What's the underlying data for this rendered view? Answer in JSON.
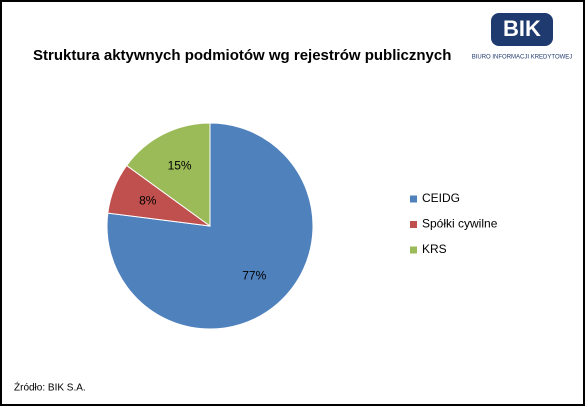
{
  "chart_data": {
    "type": "pie",
    "title": "Struktura aktywnych podmiotów wg rejestrów publicznych",
    "categories": [
      "CEIDG",
      "Spółki cywilne",
      "KRS"
    ],
    "values": [
      77,
      8,
      15
    ],
    "value_labels": [
      "77%",
      "8%",
      "15%"
    ],
    "colors": [
      "#4f81bd",
      "#c0504d",
      "#9bbb59"
    ],
    "legend": "right"
  },
  "logo": {
    "text": "BIK",
    "subtitle": "BIURO INFORMACJI KREDYTOWEJ"
  },
  "source": "Źródło: BIK S.A."
}
